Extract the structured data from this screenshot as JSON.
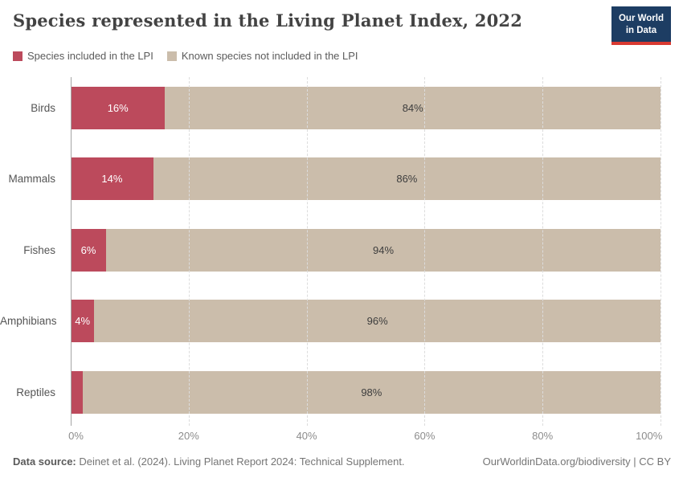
{
  "header": {
    "title": "Species represented in the Living Planet Index, 2022"
  },
  "logo": {
    "line1": "Our World",
    "line2": "in Data"
  },
  "legend": {
    "items": [
      {
        "label": "Species included in the LPI",
        "color": "#bc4a5c"
      },
      {
        "label": "Known species not included in the LPI",
        "color": "#cbbdab"
      }
    ]
  },
  "chart_data": {
    "type": "bar",
    "orientation": "horizontal",
    "stacked": true,
    "title": "Species represented in the Living Planet Index, 2022",
    "categories": [
      "Birds",
      "Mammals",
      "Fishes",
      "Amphibians",
      "Reptiles"
    ],
    "series": [
      {
        "name": "Species included in the LPI",
        "color": "#bc4a5c",
        "values": [
          16,
          14,
          6,
          4,
          2
        ]
      },
      {
        "name": "Known species not included in the LPI",
        "color": "#cbbdab",
        "values": [
          84,
          86,
          94,
          96,
          98
        ]
      }
    ],
    "value_label_suffix": "%",
    "xlim": [
      0,
      100
    ],
    "x_ticks": [
      "0%",
      "20%",
      "40%",
      "60%",
      "80%",
      "100%"
    ],
    "grid": "vertical-dashed",
    "legend_position": "top-left"
  },
  "footer": {
    "datasource_label": "Data source:",
    "datasource_text": " Deinet et al. (2024). Living Planet Report 2024: Technical Supplement.",
    "right_text": "OurWorldinData.org/biodiversity | CC BY"
  },
  "colors": {
    "included": "#bc4a5c",
    "not_included": "#cbbdab",
    "logo_bg": "#1d3d63",
    "logo_accent": "#d93a31",
    "bar_label_light": "#ffffff",
    "bar_label_dark": "#3d3d3d"
  }
}
